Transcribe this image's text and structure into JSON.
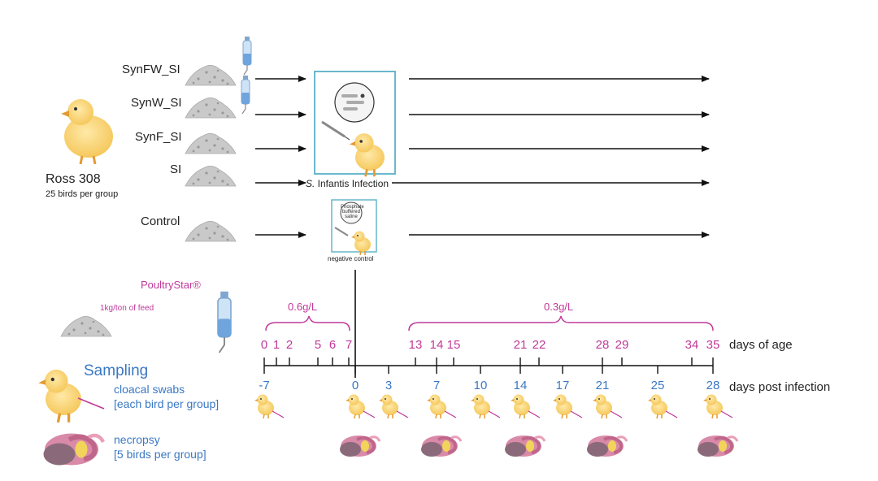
{
  "groups": [
    {
      "label": "SynFW_SI",
      "supplement": true
    },
    {
      "label": "SynW_SI",
      "supplement": true
    },
    {
      "label": "SynF_SI",
      "supplement": false
    },
    {
      "label": "SI",
      "supplement": false
    },
    {
      "label": "Control",
      "supplement": false
    }
  ],
  "bird": {
    "name": "Ross 308",
    "count": "25 birds per group"
  },
  "infection": {
    "label_italic": "S.",
    "label_rest": " Infantis Infection"
  },
  "control_box": {
    "bubble_text": [
      "Phosphate",
      "buffered",
      "saline"
    ],
    "label": "negative control"
  },
  "product": {
    "name": "PoultryStar®",
    "dose_feed": "1kg/ton of feed"
  },
  "doses": {
    "early": "0.6g/L",
    "late": "0.3g/L"
  },
  "days_of_age": {
    "label": "days of age",
    "ticks": [
      "0",
      "1",
      "2",
      "5",
      "6",
      "7",
      "13",
      "14",
      "15",
      "21",
      "22",
      "28",
      "29",
      "34",
      "35"
    ]
  },
  "days_post_infection": {
    "label": "days post infection",
    "ticks": [
      "-7",
      "0",
      "3",
      "7",
      "10",
      "14",
      "17",
      "21",
      "25",
      "28"
    ]
  },
  "sampling": {
    "title": "Sampling",
    "swabs": {
      "line1": "cloacal swabs",
      "line2": "[each bird per group]"
    },
    "necropsy": {
      "line1": "necropsy",
      "line2": "[5 birds per group]"
    }
  },
  "colors": {
    "pink": "#c0399a",
    "blue": "#3a78c4",
    "box": "#5ab0c8"
  }
}
